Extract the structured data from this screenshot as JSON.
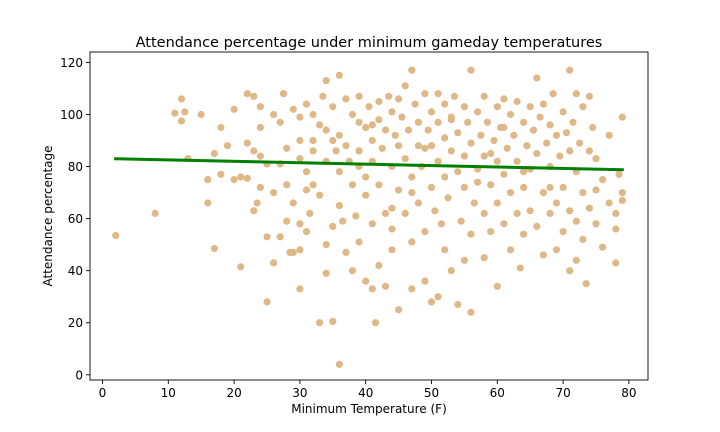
{
  "chart_data": {
    "type": "scatter",
    "title": "Attendance percentage under minimum gameday temperatures",
    "xlabel": "Minimum Temperature (F)",
    "ylabel": "Attendance percentage",
    "xlim": [
      -1.9,
      82.9
    ],
    "ylim": [
      -2,
      124
    ],
    "xticks": [
      0,
      10,
      20,
      30,
      40,
      50,
      60,
      70,
      80
    ],
    "yticks": [
      0,
      20,
      40,
      60,
      80,
      100,
      120
    ],
    "grid": false,
    "legend": "none",
    "point_color": "#deb887",
    "trend_color": "#008000",
    "trendline": {
      "x": [
        2,
        79
      ],
      "y": [
        83.0,
        78.8
      ]
    },
    "points": [
      [
        2,
        53.5
      ],
      [
        8,
        62
      ],
      [
        11,
        100.5
      ],
      [
        12,
        106
      ],
      [
        12,
        97.5
      ],
      [
        12.5,
        101
      ],
      [
        13,
        83
      ],
      [
        15,
        100
      ],
      [
        16,
        75
      ],
      [
        16,
        66
      ],
      [
        17,
        85
      ],
      [
        17,
        48.5
      ],
      [
        18,
        95
      ],
      [
        18,
        77
      ],
      [
        19,
        88
      ],
      [
        20,
        102
      ],
      [
        20,
        75
      ],
      [
        21,
        76
      ],
      [
        21,
        41.5
      ],
      [
        22,
        108
      ],
      [
        22,
        89
      ],
      [
        22,
        75.5
      ],
      [
        23,
        107
      ],
      [
        23,
        86
      ],
      [
        23,
        63
      ],
      [
        23.5,
        66
      ],
      [
        24,
        103
      ],
      [
        24,
        95
      ],
      [
        24,
        84
      ],
      [
        24,
        72
      ],
      [
        25,
        28
      ],
      [
        25,
        53
      ],
      [
        25,
        81
      ],
      [
        26,
        100
      ],
      [
        26,
        70
      ],
      [
        26,
        43
      ],
      [
        27,
        97
      ],
      [
        27,
        81
      ],
      [
        27,
        53
      ],
      [
        27.5,
        108
      ],
      [
        28,
        87
      ],
      [
        28,
        73
      ],
      [
        28,
        59
      ],
      [
        28.5,
        47
      ],
      [
        29,
        102
      ],
      [
        29,
        47
      ],
      [
        29,
        66
      ],
      [
        30,
        90
      ],
      [
        30,
        48
      ],
      [
        30,
        33
      ],
      [
        30,
        83
      ],
      [
        30,
        58
      ],
      [
        30,
        99
      ],
      [
        31,
        104
      ],
      [
        31,
        78
      ],
      [
        31,
        55
      ],
      [
        31.5,
        62
      ],
      [
        32,
        86
      ],
      [
        32,
        73
      ],
      [
        32,
        100
      ],
      [
        32,
        90
      ],
      [
        33,
        96
      ],
      [
        33,
        69
      ],
      [
        33,
        20
      ],
      [
        33.5,
        107
      ],
      [
        34,
        113
      ],
      [
        34,
        94
      ],
      [
        34,
        82
      ],
      [
        34,
        50
      ],
      [
        34,
        39
      ],
      [
        35,
        57
      ],
      [
        35,
        20.5
      ],
      [
        35,
        103
      ],
      [
        35.5,
        86
      ],
      [
        36,
        115
      ],
      [
        36,
        4
      ],
      [
        36,
        92
      ],
      [
        36,
        65
      ],
      [
        36,
        78
      ],
      [
        36.5,
        59
      ],
      [
        37,
        106
      ],
      [
        37,
        88
      ],
      [
        37,
        47
      ],
      [
        37.5,
        82
      ],
      [
        38,
        73
      ],
      [
        38,
        40
      ],
      [
        38,
        100
      ],
      [
        38.5,
        61
      ],
      [
        39,
        107
      ],
      [
        39,
        97
      ],
      [
        39,
        86
      ],
      [
        39,
        51
      ],
      [
        40,
        36
      ],
      [
        40,
        76
      ],
      [
        40,
        69
      ],
      [
        40,
        95
      ],
      [
        40.5,
        103
      ],
      [
        41,
        90
      ],
      [
        41,
        82
      ],
      [
        41,
        58
      ],
      [
        41,
        33
      ],
      [
        41.5,
        20
      ],
      [
        42,
        105
      ],
      [
        42,
        73
      ],
      [
        42,
        98
      ],
      [
        42,
        42
      ],
      [
        42.5,
        87
      ],
      [
        43,
        62
      ],
      [
        43,
        94
      ],
      [
        43,
        34
      ],
      [
        43.5,
        107
      ],
      [
        44,
        101
      ],
      [
        44,
        80
      ],
      [
        44,
        56
      ],
      [
        44,
        48
      ],
      [
        44.5,
        92
      ],
      [
        45,
        106
      ],
      [
        45,
        25
      ],
      [
        45,
        71
      ],
      [
        45,
        88
      ],
      [
        45.5,
        99
      ],
      [
        46,
        83
      ],
      [
        46,
        62
      ],
      [
        46,
        111
      ],
      [
        46.5,
        94
      ],
      [
        47,
        117
      ],
      [
        47,
        51
      ],
      [
        47,
        76
      ],
      [
        47,
        33
      ],
      [
        47.5,
        104
      ],
      [
        48,
        97
      ],
      [
        48,
        66
      ],
      [
        48,
        88
      ],
      [
        48.5,
        80
      ],
      [
        49,
        108
      ],
      [
        49,
        55
      ],
      [
        49,
        36
      ],
      [
        49.5,
        94
      ],
      [
        50,
        101
      ],
      [
        50,
        72
      ],
      [
        50,
        88
      ],
      [
        50,
        28
      ],
      [
        50.5,
        63
      ],
      [
        51,
        97
      ],
      [
        51,
        108
      ],
      [
        51,
        82
      ],
      [
        51,
        30
      ],
      [
        51.5,
        58
      ],
      [
        52,
        104
      ],
      [
        52,
        91
      ],
      [
        52,
        76
      ],
      [
        52,
        48
      ],
      [
        52.5,
        68
      ],
      [
        53,
        98
      ],
      [
        53,
        86
      ],
      [
        53,
        40
      ],
      [
        53.5,
        107
      ],
      [
        54,
        93
      ],
      [
        54,
        78
      ],
      [
        54,
        27
      ],
      [
        54.5,
        59
      ],
      [
        55,
        103
      ],
      [
        55,
        72
      ],
      [
        55,
        84
      ],
      [
        55,
        44
      ],
      [
        55.5,
        97
      ],
      [
        56,
        117
      ],
      [
        56,
        24
      ],
      [
        56,
        89
      ],
      [
        56,
        54
      ],
      [
        56.5,
        66
      ],
      [
        57,
        101
      ],
      [
        57,
        79
      ],
      [
        57.5,
        92
      ],
      [
        58,
        107
      ],
      [
        58,
        62
      ],
      [
        58,
        84
      ],
      [
        58,
        45
      ],
      [
        58.5,
        97
      ],
      [
        59,
        73
      ],
      [
        59,
        55
      ],
      [
        59.5,
        90
      ],
      [
        60,
        103
      ],
      [
        60,
        82
      ],
      [
        60,
        34
      ],
      [
        60,
        66
      ],
      [
        60.5,
        95
      ],
      [
        61,
        106
      ],
      [
        61,
        58
      ],
      [
        61,
        77
      ],
      [
        61.5,
        87
      ],
      [
        62,
        100
      ],
      [
        62,
        48
      ],
      [
        62,
        70
      ],
      [
        62.5,
        92
      ],
      [
        63,
        105
      ],
      [
        63,
        62
      ],
      [
        63,
        82
      ],
      [
        63.5,
        41
      ],
      [
        64,
        97
      ],
      [
        64,
        72
      ],
      [
        64,
        54
      ],
      [
        64.5,
        88
      ],
      [
        65,
        103
      ],
      [
        65,
        79
      ],
      [
        65,
        63
      ],
      [
        65.5,
        94
      ],
      [
        66,
        114
      ],
      [
        66,
        85
      ],
      [
        66,
        57
      ],
      [
        66.5,
        99
      ],
      [
        67,
        104
      ],
      [
        67,
        70
      ],
      [
        67,
        46
      ],
      [
        67.5,
        89
      ],
      [
        68,
        96
      ],
      [
        68,
        80
      ],
      [
        68,
        62
      ],
      [
        68.5,
        108
      ],
      [
        69,
        92
      ],
      [
        69,
        66
      ],
      [
        69,
        48
      ],
      [
        69.5,
        84
      ],
      [
        70,
        101
      ],
      [
        70,
        72
      ],
      [
        70,
        55
      ],
      [
        70.5,
        93
      ],
      [
        71,
        117
      ],
      [
        71,
        86
      ],
      [
        71,
        63
      ],
      [
        71,
        40
      ],
      [
        71.5,
        97
      ],
      [
        72,
        108
      ],
      [
        72,
        78
      ],
      [
        72,
        59
      ],
      [
        72,
        44
      ],
      [
        72.5,
        89
      ],
      [
        73,
        103
      ],
      [
        73,
        70
      ],
      [
        73,
        52
      ],
      [
        73.5,
        35
      ],
      [
        74,
        107
      ],
      [
        74,
        86
      ],
      [
        74,
        64
      ],
      [
        74.5,
        95
      ],
      [
        75,
        83
      ],
      [
        75,
        58
      ],
      [
        75,
        71
      ],
      [
        76,
        75
      ],
      [
        76,
        49
      ],
      [
        77,
        92
      ],
      [
        77,
        66
      ],
      [
        78,
        56
      ],
      [
        78,
        43
      ],
      [
        79,
        99
      ],
      [
        79,
        70
      ],
      [
        78.5,
        77
      ],
      [
        78,
        62
      ],
      [
        79,
        67
      ],
      [
        49,
        87
      ],
      [
        39,
        80
      ],
      [
        31,
        71
      ],
      [
        59,
        85
      ],
      [
        44,
        64
      ],
      [
        53,
        99
      ],
      [
        64,
        78
      ],
      [
        47,
        70
      ],
      [
        57,
        74
      ],
      [
        41,
        96
      ],
      [
        35,
        90
      ],
      [
        68,
        72
      ],
      [
        61,
        95
      ]
    ]
  }
}
